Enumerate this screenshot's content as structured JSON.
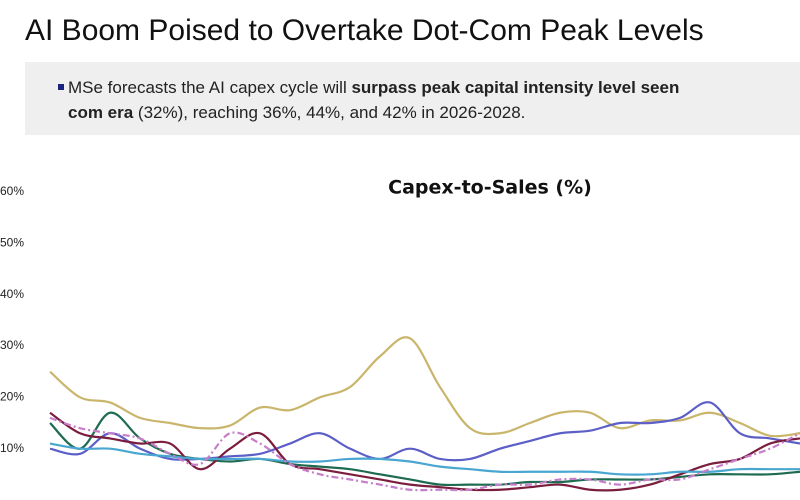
{
  "header": {
    "title": "AI Boom Poised to Overtake Dot-Com Peak Levels",
    "bullet": {
      "lines": [
        [
          {
            "text": "MSe forecasts the AI capex cycle will ",
            "bold": false
          },
          {
            "text": "surpass peak capital intensity level seen",
            "bold": true
          }
        ],
        [
          {
            "text": "com era",
            "bold": true
          },
          {
            "text": " (32%), reaching 36%, 44%, and 42% in 2026-2028.",
            "bold": false
          }
        ]
      ]
    }
  },
  "chart_data": {
    "type": "line",
    "title": "Capex-to-Sales (%)",
    "categories": [
      null,
      null,
      null,
      null,
      null,
      null,
      null,
      null,
      null,
      null,
      null,
      null,
      null,
      null,
      null,
      null,
      null,
      null,
      null,
      null,
      null,
      null,
      null,
      null,
      null,
      null
    ],
    "series": [
      {
        "color": "#c9b56b",
        "dashed": false,
        "values": [
          25,
          20,
          19,
          16,
          15,
          14,
          14.5,
          18,
          17.5,
          20,
          22,
          28,
          31.5,
          22,
          14,
          13,
          15,
          17,
          17,
          14,
          15.5,
          15.5,
          17,
          15,
          12.5,
          13
        ]
      },
      {
        "color": "#5b5fc7",
        "dashed": false,
        "values": [
          10,
          9,
          13,
          10,
          8,
          8,
          8.5,
          9,
          11,
          13,
          10,
          8,
          10,
          8,
          8,
          10,
          11.5,
          13,
          13.5,
          15,
          15,
          16,
          19,
          13,
          12,
          11
        ]
      },
      {
        "color": "#1f6b50",
        "dashed": false,
        "values": [
          15,
          10,
          17,
          12,
          9,
          8,
          7.5,
          8,
          7,
          6.5,
          6,
          5,
          4,
          3,
          3,
          3,
          3.5,
          3.5,
          4,
          4,
          4,
          4.5,
          5,
          5,
          5,
          5.5
        ]
      },
      {
        "color": "#7b1e3e",
        "dashed": false,
        "values": [
          17,
          13,
          12,
          11,
          11,
          6,
          10,
          13,
          7,
          6,
          5,
          4,
          3,
          2.5,
          2,
          2,
          2.5,
          3,
          2,
          2,
          3,
          5,
          7,
          8,
          11,
          12
        ]
      },
      {
        "color": "#49a6d0",
        "dashed": false,
        "values": [
          11,
          10,
          10,
          9,
          8.5,
          8,
          8,
          8,
          7.5,
          7.5,
          8,
          8,
          7.5,
          6.5,
          6,
          5.5,
          5.5,
          5.5,
          5.5,
          5,
          5,
          5.5,
          5.5,
          6,
          6,
          6
        ]
      },
      {
        "color": "#c77ecb",
        "dashed": true,
        "values": [
          16,
          14,
          13,
          12,
          9,
          7,
          13,
          11,
          7,
          5,
          4,
          3,
          2,
          2,
          2,
          3,
          3,
          4,
          4,
          3,
          4,
          4,
          6,
          8,
          10,
          13
        ]
      }
    ],
    "ylim": [
      0,
      60
    ],
    "yticks": [
      {
        "value": 10,
        "label": "10%"
      },
      {
        "value": 20,
        "label": "20%"
      },
      {
        "value": 30,
        "label": "30%"
      },
      {
        "value": 40,
        "label": "40%"
      },
      {
        "value": 50,
        "label": "50%"
      },
      {
        "value": 60,
        "label": "60%"
      }
    ],
    "grid": false
  }
}
